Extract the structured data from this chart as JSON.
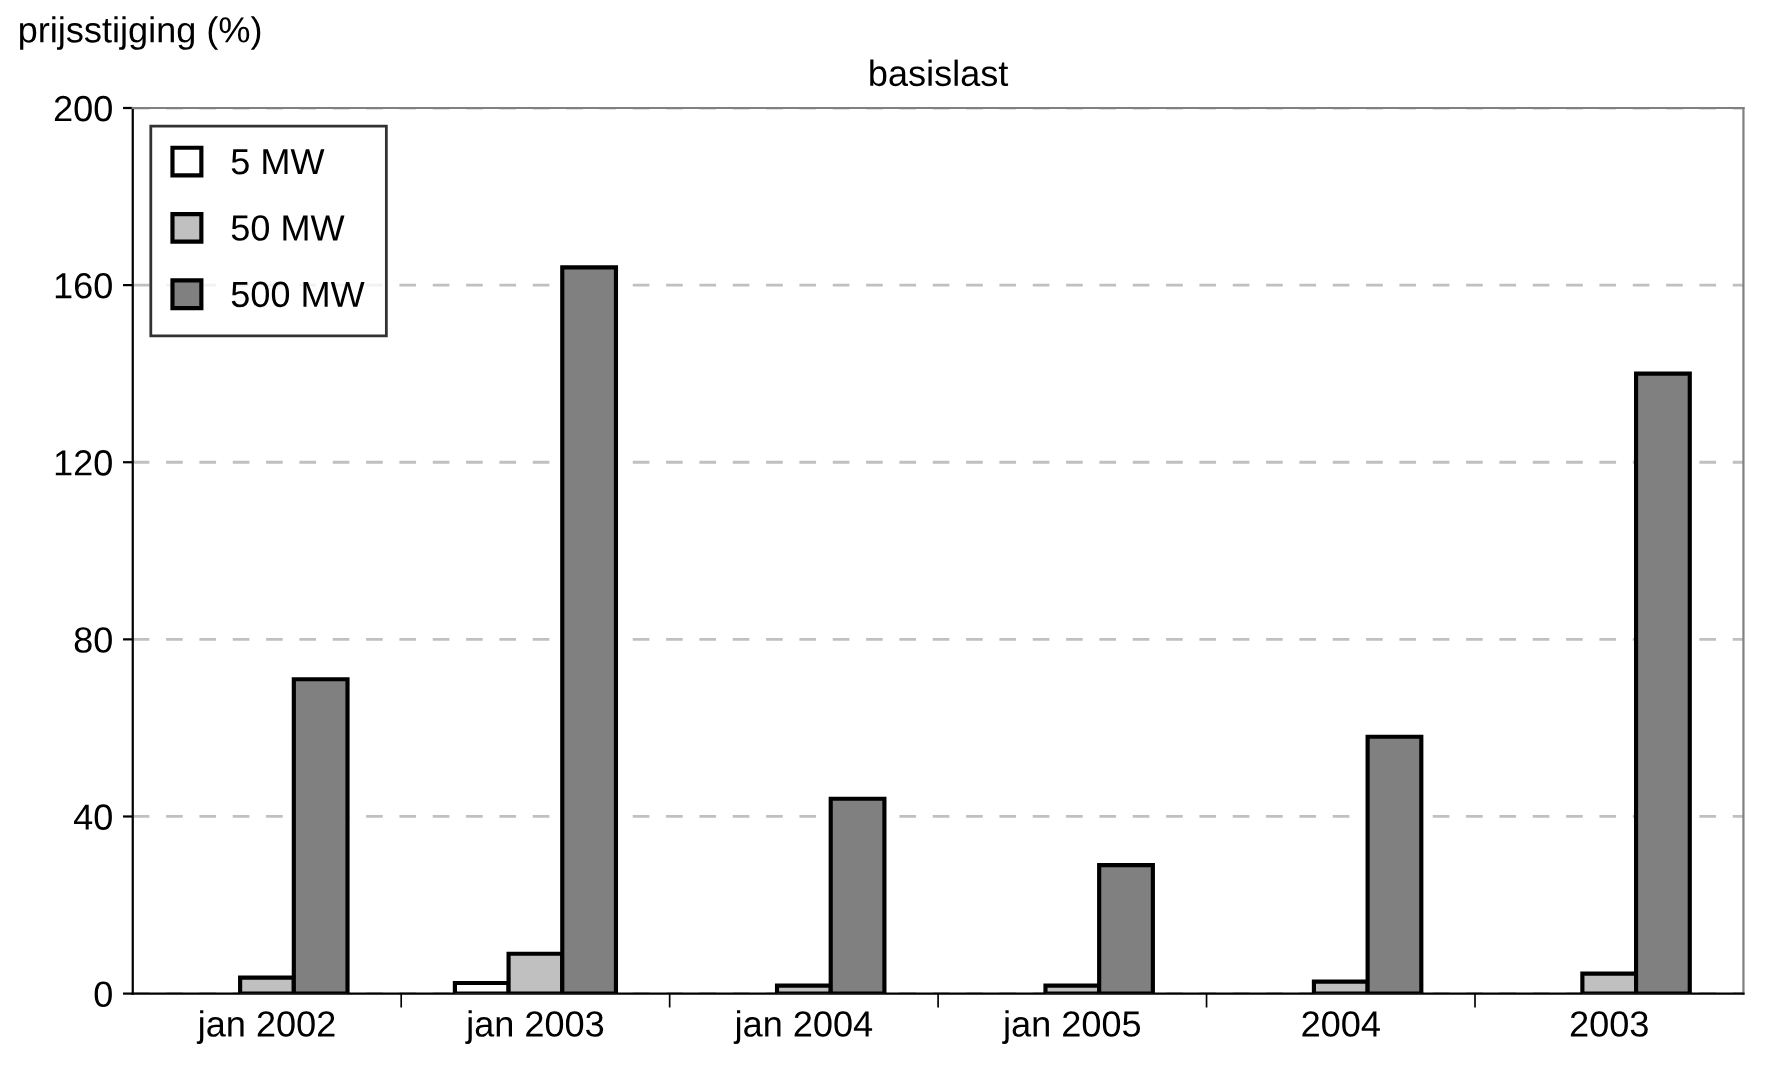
{
  "chart_data": {
    "type": "bar",
    "title": "basislast",
    "ylabel": "prijsstijging (%)",
    "categories": [
      "jan 2002",
      "jan 2003",
      "jan 2004",
      "jan 2005",
      "2004",
      "2003"
    ],
    "series": [
      {
        "name": "5 MW",
        "color": "#ffffff",
        "values": [
          0,
          2.4,
          0,
          0,
          0,
          0
        ]
      },
      {
        "name": "50 MW",
        "color": "#c0c0c0",
        "values": [
          3.6,
          9,
          1.8,
          1.8,
          2.7,
          4.5
        ]
      },
      {
        "name": "500 MW",
        "color": "#808080",
        "values": [
          71,
          164,
          44,
          29,
          58,
          140
        ]
      }
    ],
    "ylim": [
      0,
      200
    ],
    "yticks": [
      0,
      40,
      80,
      120,
      160,
      200
    ],
    "grid": "y",
    "legend": "top left"
  }
}
